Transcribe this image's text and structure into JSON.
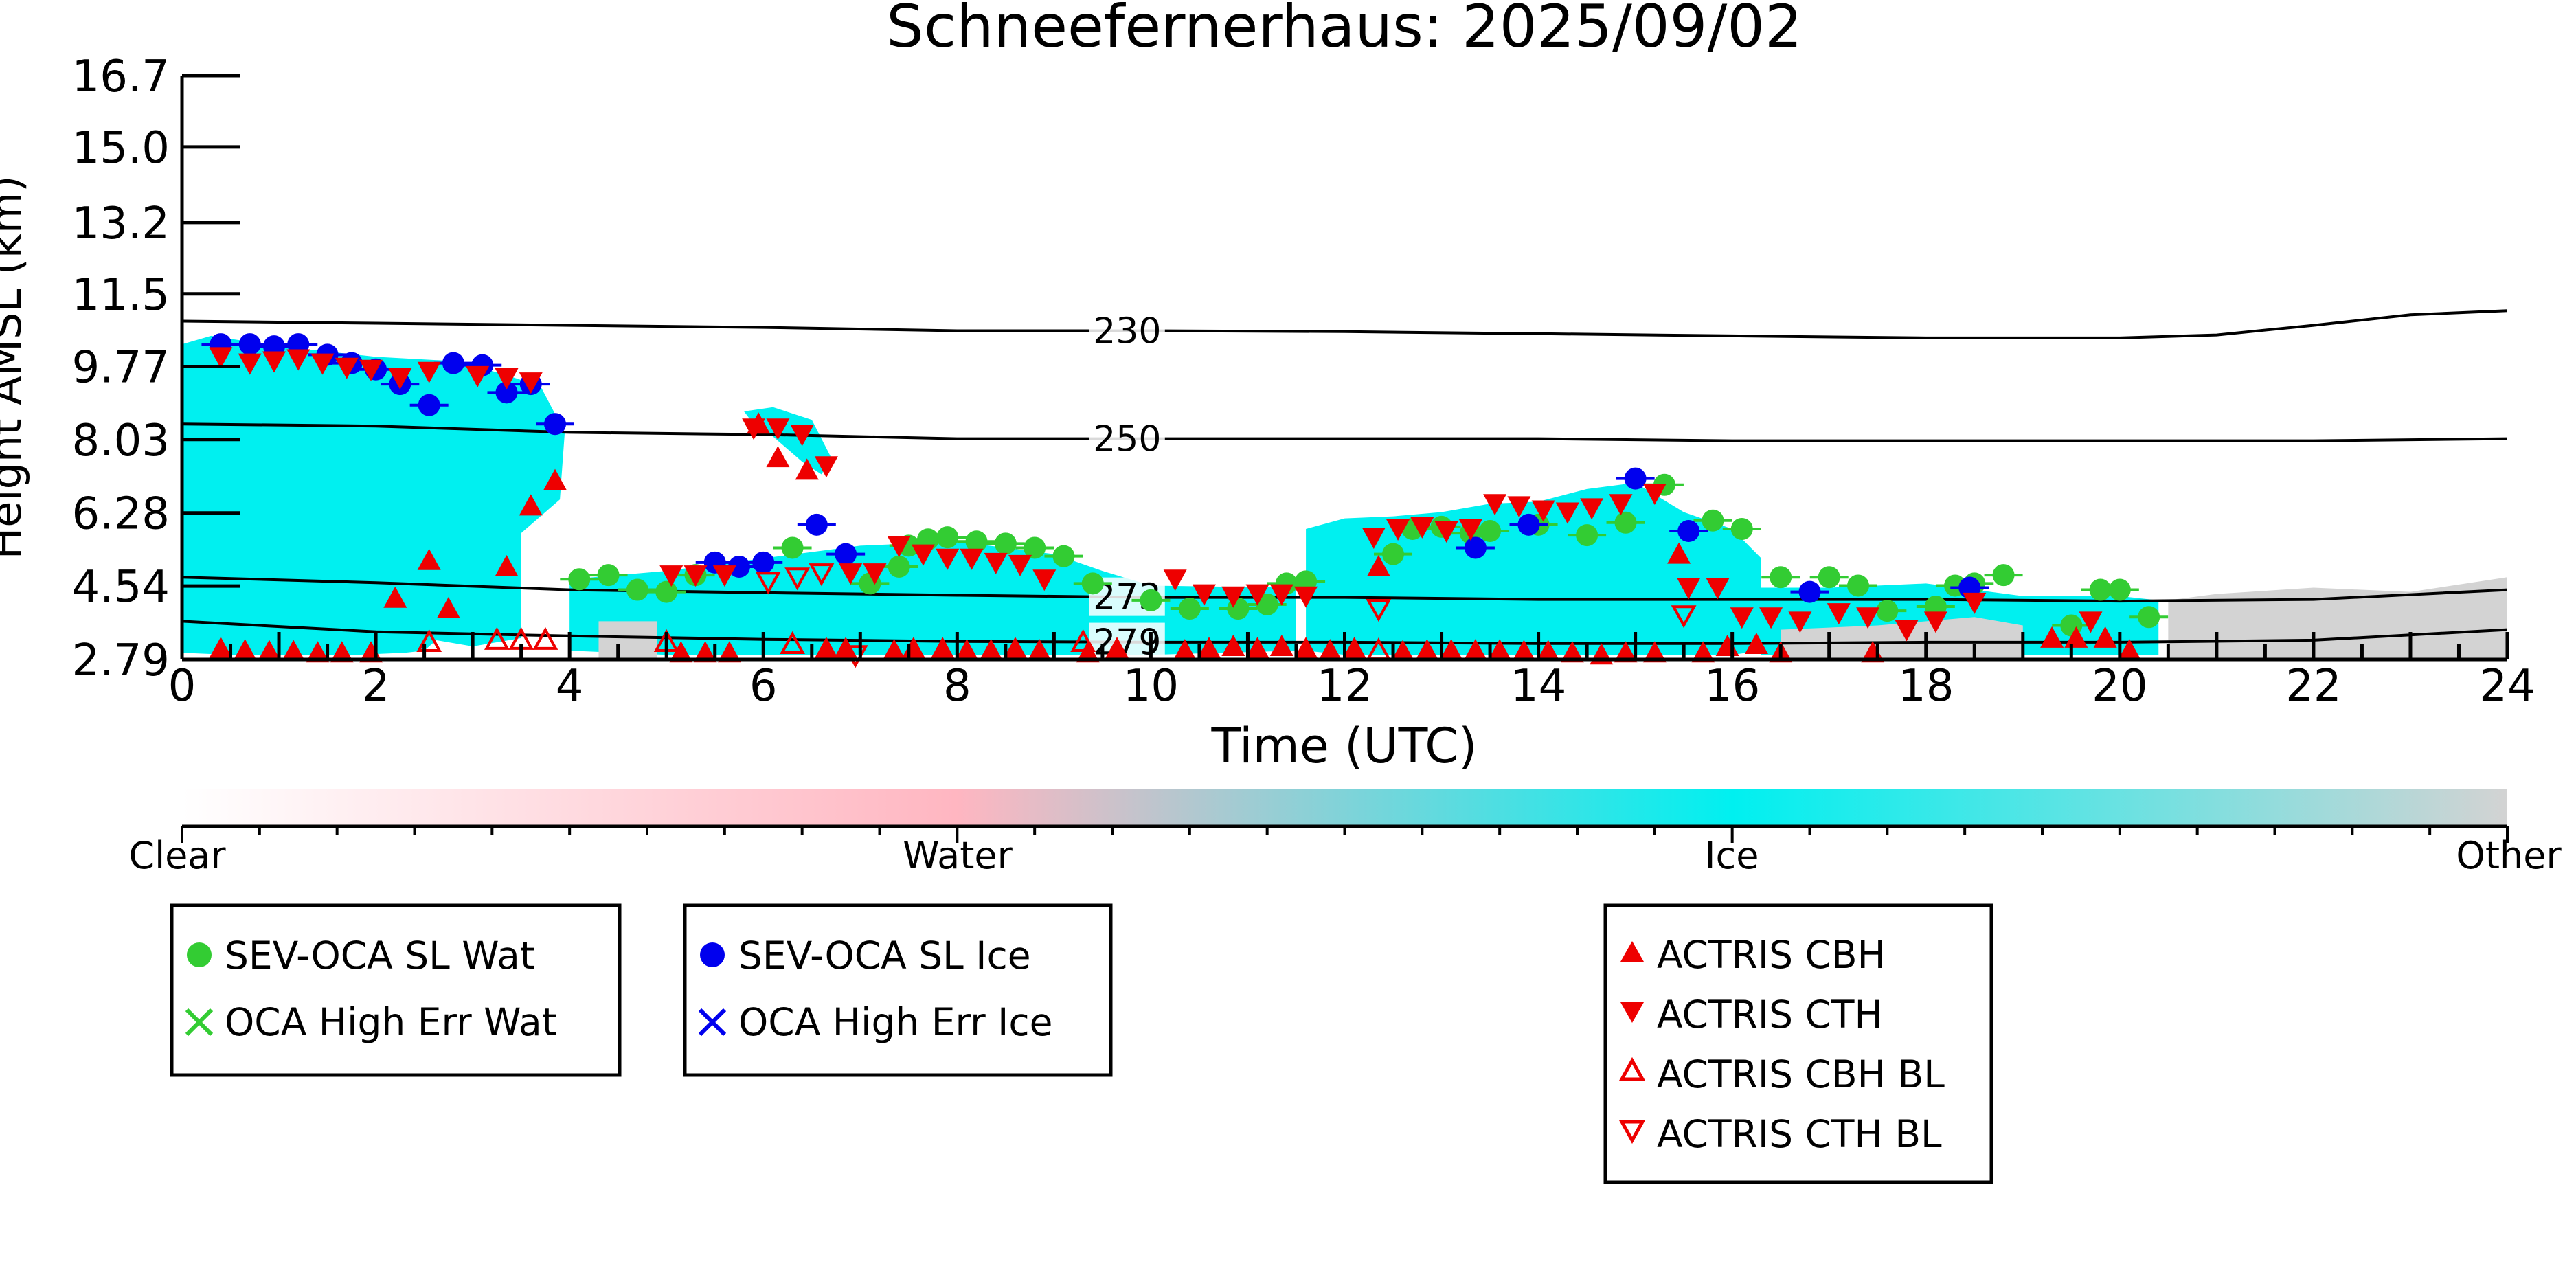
{
  "chart_data": {
    "type": "scatter",
    "title": "Schneefernerhaus: 2025/09/02",
    "xlabel": "Time (UTC)",
    "ylabel": "Height AMSL (km)",
    "xlim": [
      0,
      24
    ],
    "ylim": [
      2.79,
      16.7
    ],
    "x_ticks": [
      0,
      2,
      4,
      6,
      8,
      10,
      12,
      14,
      16,
      18,
      20,
      22,
      24
    ],
    "y_ticks": [
      2.79,
      4.54,
      6.28,
      8.03,
      9.77,
      11.5,
      13.2,
      15.0,
      16.7
    ],
    "y_tick_labels": [
      "2.79",
      "4.54",
      "6.28",
      "8.03",
      "9.77",
      "11.5",
      "13.2",
      "15.0",
      "16.7"
    ],
    "grid": false,
    "colors": {
      "clear": "#ffffff",
      "water": "#ffb6c1",
      "ice": "#00f0f0",
      "other": "#d3d3d3",
      "sev_wat": "#33cc33",
      "sev_ice": "#0000ee",
      "actris": "#ee0000"
    },
    "colorbar": {
      "labels": [
        "Clear",
        "Water",
        "Ice",
        "Other"
      ]
    },
    "isotherms": [
      {
        "label": "230",
        "label_x": 9.4,
        "x": [
          0,
          2,
          4,
          6,
          8,
          10,
          12,
          14,
          16,
          18,
          20,
          21,
          22,
          23,
          24
        ],
        "y": [
          10.85,
          10.8,
          10.75,
          10.7,
          10.62,
          10.62,
          10.6,
          10.55,
          10.5,
          10.45,
          10.45,
          10.52,
          10.75,
          11.0,
          11.1
        ]
      },
      {
        "label": "250",
        "label_x": 9.4,
        "x": [
          0,
          2,
          4,
          6,
          8,
          10,
          12,
          14,
          16,
          18,
          20,
          22,
          24
        ],
        "y": [
          8.4,
          8.35,
          8.2,
          8.15,
          8.05,
          8.05,
          8.05,
          8.05,
          8.0,
          8.0,
          8.0,
          8.0,
          8.05
        ]
      },
      {
        "label": "273",
        "label_x": 9.4,
        "x": [
          0,
          2,
          4,
          6,
          8,
          10,
          12,
          14,
          16,
          18,
          20,
          22,
          24
        ],
        "y": [
          4.75,
          4.62,
          4.45,
          4.38,
          4.32,
          4.27,
          4.27,
          4.22,
          4.22,
          4.22,
          4.18,
          4.22,
          4.45
        ]
      },
      {
        "label": "279",
        "label_x": 9.4,
        "x": [
          0,
          2,
          4,
          6,
          8,
          10,
          12,
          14,
          16,
          18,
          20,
          22,
          24
        ],
        "y": [
          3.7,
          3.45,
          3.35,
          3.27,
          3.22,
          3.2,
          3.2,
          3.17,
          3.17,
          3.2,
          3.2,
          3.25,
          3.5
        ]
      }
    ],
    "cloud_mask": [
      {
        "class": "ice",
        "x": [
          0,
          0.3,
          1,
          2,
          2.8,
          3.3,
          3.7,
          3.95,
          3.9,
          3.5,
          3.0,
          2.7,
          2.5,
          2.3,
          1.8,
          1.2,
          0.5,
          0
        ],
        "y": [
          10.3,
          10.5,
          10.25,
          10.0,
          9.9,
          9.6,
          9.3,
          8.2,
          6.6,
          5.8,
          5.5,
          3.4,
          3.0,
          2.95,
          2.9,
          2.9,
          2.9,
          2.95
        ]
      },
      {
        "class": "ice",
        "x": [
          2.5,
          3.1,
          3.5,
          3.5,
          3.0,
          2.5
        ],
        "y": [
          6.4,
          6.4,
          5.8,
          3.3,
          3.1,
          3.3
        ]
      },
      {
        "class": "ice",
        "x": [
          5.8,
          6.1,
          6.5,
          6.7,
          6.6,
          6.4,
          6.1,
          5.9
        ],
        "y": [
          8.7,
          8.8,
          8.5,
          7.6,
          7.2,
          7.5,
          8.1,
          8.4
        ]
      },
      {
        "class": "ice",
        "x": [
          4.0,
          5.0,
          6.0,
          7.0,
          8.0,
          9.0,
          9.5,
          10.0,
          11.5,
          11.5,
          10.0,
          9.0,
          8.0,
          7.0,
          6.0,
          5.0,
          4.0
        ],
        "y": [
          4.7,
          4.9,
          5.2,
          5.5,
          5.6,
          5.3,
          4.9,
          4.55,
          4.5,
          3.0,
          2.9,
          2.9,
          2.9,
          2.9,
          2.9,
          2.9,
          3.0
        ]
      },
      {
        "class": "ice",
        "x": [
          11.6,
          12.0,
          12.5,
          13.0,
          13.5,
          14.0,
          14.5,
          15.0,
          15.5,
          16.0,
          16.3,
          16.3,
          16.0,
          15.0,
          14.0,
          13.0,
          12.0,
          11.6
        ],
        "y": [
          5.9,
          6.15,
          6.2,
          6.3,
          6.5,
          6.55,
          6.85,
          7.0,
          6.3,
          5.9,
          5.2,
          3.0,
          2.9,
          2.9,
          2.9,
          2.9,
          2.9,
          3.0
        ]
      },
      {
        "class": "ice",
        "x": [
          16.3,
          17.0,
          18.0,
          19.0,
          20.0,
          20.4,
          20.4,
          19.0,
          18.0,
          17.0,
          16.3
        ],
        "y": [
          4.5,
          4.5,
          4.6,
          4.3,
          4.3,
          4.2,
          2.9,
          2.9,
          2.9,
          2.9,
          2.9
        ]
      },
      {
        "class": "other",
        "x": [
          20.5,
          21.0,
          22.0,
          23.0,
          24.0,
          24.0,
          20.5
        ],
        "y": [
          4.2,
          4.35,
          4.5,
          4.4,
          4.75,
          2.79,
          2.79
        ]
      },
      {
        "class": "other",
        "x": [
          16.5,
          17.5,
          18.5,
          19.0,
          19.0,
          16.5
        ],
        "y": [
          3.5,
          3.6,
          3.8,
          3.6,
          2.79,
          2.79
        ]
      },
      {
        "class": "other",
        "x": [
          4.3,
          4.9,
          4.9,
          4.3
        ],
        "y": [
          3.7,
          3.7,
          2.79,
          2.79
        ]
      }
    ],
    "series": [
      {
        "name": "SEV-OCA SL Wat",
        "marker": "circle",
        "color": "#33cc33",
        "x": [
          4.1,
          4.4,
          4.7,
          5.0,
          5.3,
          6.3,
          7.1,
          7.4,
          7.5,
          7.7,
          7.9,
          8.2,
          8.5,
          8.8,
          9.1,
          9.4,
          10.0,
          10.4,
          10.9,
          11.2,
          11.4,
          11.6,
          12.5,
          12.7,
          13.0,
          13.3,
          13.5,
          14.0,
          14.5,
          14.9,
          15.3,
          15.8,
          16.1,
          16.5,
          17.0,
          17.3,
          17.6,
          18.1,
          18.3,
          18.5,
          18.8,
          19.5,
          19.8,
          20.0,
          20.3
        ],
        "y": [
          4.7,
          4.8,
          4.45,
          4.4,
          4.8,
          5.45,
          4.6,
          5.0,
          5.5,
          5.65,
          5.7,
          5.6,
          5.55,
          5.45,
          5.25,
          4.6,
          4.2,
          4.0,
          4.0,
          4.1,
          4.6,
          4.65,
          5.3,
          5.9,
          5.95,
          5.8,
          5.85,
          6.0,
          5.75,
          6.05,
          6.95,
          6.1,
          5.9,
          4.75,
          4.75,
          4.55,
          3.95,
          4.05,
          4.55,
          4.6,
          4.8,
          3.6,
          4.45,
          4.45,
          3.8
        ]
      },
      {
        "name": "OCA High Err Wat",
        "marker": "x",
        "color": "#33cc33",
        "x": [],
        "y": []
      },
      {
        "name": "SEV-OCA SL Ice",
        "marker": "circle",
        "color": "#0000ee",
        "x": [
          0.4,
          0.7,
          0.95,
          1.2,
          1.5,
          1.75,
          2.0,
          2.25,
          2.55,
          2.8,
          3.1,
          3.35,
          3.6,
          3.85,
          5.5,
          5.75,
          6.0,
          6.55,
          6.85,
          13.35,
          13.9,
          15.0,
          15.55,
          16.8,
          18.45
        ],
        "y": [
          10.3,
          10.3,
          10.25,
          10.3,
          10.05,
          9.85,
          9.7,
          9.35,
          8.85,
          9.85,
          9.8,
          9.15,
          9.35,
          8.4,
          5.1,
          5.0,
          5.1,
          6.0,
          5.3,
          5.45,
          6.0,
          7.1,
          5.85,
          4.4,
          4.5
        ]
      },
      {
        "name": "OCA High Err Ice",
        "marker": "x",
        "color": "#0000ee",
        "x": [],
        "y": []
      },
      {
        "name": "ACTRIS CBH",
        "marker": "triangle-up",
        "color": "#ee0000",
        "x": [
          0.4,
          0.65,
          0.9,
          1.15,
          1.4,
          1.65,
          1.95,
          2.2,
          2.55,
          2.75,
          3.35,
          3.6,
          3.85,
          5.15,
          5.4,
          5.65,
          5.95,
          6.15,
          6.45,
          6.65,
          6.85,
          7.35,
          7.55,
          7.85,
          8.1,
          8.35,
          8.6,
          8.85,
          9.35,
          9.65,
          10.35,
          10.6,
          10.85,
          11.1,
          11.35,
          11.6,
          11.85,
          12.1,
          12.35,
          12.6,
          12.85,
          13.1,
          13.35,
          13.6,
          13.85,
          14.1,
          14.35,
          14.65,
          14.9,
          15.2,
          15.45,
          15.7,
          15.95,
          16.25,
          16.5,
          17.45,
          19.3,
          19.55,
          19.85,
          20.1
        ],
        "y": [
          3.05,
          3.0,
          2.98,
          2.98,
          2.95,
          2.95,
          2.95,
          4.25,
          5.15,
          4.0,
          5.0,
          6.45,
          7.05,
          2.95,
          2.95,
          2.95,
          8.4,
          7.6,
          7.3,
          3.05,
          3.05,
          3.0,
          3.05,
          3.05,
          3.0,
          3.0,
          3.05,
          3.0,
          2.95,
          3.05,
          3.0,
          3.05,
          3.1,
          3.05,
          3.1,
          3.05,
          3.0,
          3.05,
          5.0,
          2.98,
          3.0,
          3.0,
          3.0,
          3.0,
          2.98,
          2.98,
          2.95,
          2.9,
          2.95,
          2.95,
          5.3,
          2.95,
          3.1,
          3.15,
          2.95,
          2.95,
          3.3,
          3.3,
          3.3,
          3.0
        ]
      },
      {
        "name": "ACTRIS CTH",
        "marker": "triangle-down",
        "color": "#ee0000",
        "x": [
          0.4,
          0.7,
          0.95,
          1.2,
          1.45,
          1.7,
          1.95,
          2.25,
          2.55,
          3.05,
          3.35,
          3.6,
          5.05,
          5.3,
          5.6,
          5.9,
          6.15,
          6.4,
          6.65,
          6.9,
          7.15,
          7.4,
          7.65,
          7.9,
          8.15,
          8.4,
          8.65,
          8.9,
          10.25,
          10.55,
          10.85,
          11.1,
          11.35,
          11.6,
          12.3,
          12.55,
          12.8,
          13.05,
          13.3,
          13.55,
          13.8,
          14.05,
          14.3,
          14.55,
          14.85,
          15.2,
          15.55,
          15.85,
          16.1,
          16.4,
          16.7,
          17.1,
          17.4,
          17.8,
          18.1,
          18.5,
          19.7
        ],
        "y": [
          10.0,
          9.85,
          9.9,
          9.95,
          9.85,
          9.75,
          9.7,
          9.5,
          9.65,
          9.55,
          9.5,
          9.4,
          4.8,
          4.8,
          4.8,
          8.3,
          8.3,
          8.15,
          7.4,
          4.85,
          4.85,
          5.5,
          5.3,
          5.2,
          5.2,
          5.1,
          5.05,
          4.7,
          4.7,
          4.35,
          4.3,
          4.35,
          4.35,
          4.3,
          5.7,
          5.9,
          5.95,
          5.85,
          5.9,
          6.5,
          6.45,
          6.35,
          6.3,
          6.4,
          6.5,
          6.75,
          4.5,
          4.5,
          3.8,
          3.8,
          3.7,
          3.9,
          3.8,
          3.5,
          3.7,
          4.15,
          3.7
        ]
      },
      {
        "name": "ACTRIS CBH BL",
        "marker": "triangle-up-open",
        "color": "#ee0000",
        "x": [
          2.55,
          3.25,
          3.5,
          3.75,
          5.0,
          6.3,
          9.3,
          12.35
        ],
        "y": [
          3.2,
          3.25,
          3.25,
          3.25,
          3.2,
          3.15,
          3.2,
          3.0
        ]
      },
      {
        "name": "ACTRIS CTH BL",
        "marker": "triangle-down-open",
        "color": "#ee0000",
        "x": [
          6.05,
          6.35,
          6.6,
          6.95,
          12.35,
          15.5
        ],
        "y": [
          4.65,
          4.75,
          4.85,
          2.9,
          4.0,
          3.85
        ]
      }
    ],
    "legend": {
      "placement": "below",
      "boxes": [
        [
          "SEV-OCA SL Wat",
          "OCA High Err Wat"
        ],
        [
          "SEV-OCA SL Ice",
          "OCA High Err Ice"
        ],
        [
          "ACTRIS CBH",
          "ACTRIS CTH",
          "ACTRIS CBH BL",
          "ACTRIS CTH BL"
        ]
      ]
    }
  }
}
